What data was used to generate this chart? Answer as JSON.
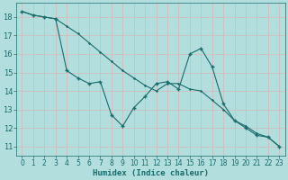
{
  "xlabel": "Humidex (Indice chaleur)",
  "bg_color": "#b2dede",
  "grid_color": "#c8e8e8",
  "line_color": "#1a6b6b",
  "xlim": [
    -0.5,
    23.5
  ],
  "ylim": [
    10.5,
    18.75
  ],
  "x_ticks": [
    0,
    1,
    2,
    3,
    4,
    5,
    6,
    7,
    8,
    9,
    10,
    11,
    12,
    13,
    14,
    15,
    16,
    17,
    18,
    19,
    20,
    21,
    22,
    23
  ],
  "y_ticks": [
    11,
    12,
    13,
    14,
    15,
    16,
    17,
    18
  ],
  "series1_x": [
    0,
    1,
    2,
    3,
    4,
    5,
    6,
    7,
    8,
    9,
    10,
    11,
    12,
    13,
    14,
    15,
    16,
    17,
    18,
    19,
    20,
    21,
    22,
    23
  ],
  "series1_y": [
    18.3,
    18.1,
    18.0,
    17.9,
    15.1,
    14.7,
    14.4,
    14.5,
    12.7,
    12.1,
    13.1,
    13.7,
    14.4,
    14.5,
    14.1,
    16.0,
    16.3,
    15.3,
    13.3,
    12.4,
    12.0,
    11.6,
    11.5,
    11.0
  ],
  "series2_x": [
    0,
    1,
    2,
    3,
    4,
    5,
    6,
    7,
    8,
    9,
    10,
    11,
    12,
    13,
    14,
    15,
    16,
    17,
    18,
    19,
    20,
    21,
    22,
    23
  ],
  "series2_y": [
    18.3,
    18.1,
    18.0,
    17.9,
    17.5,
    17.1,
    16.6,
    16.1,
    15.6,
    15.1,
    14.7,
    14.3,
    14.0,
    14.4,
    14.4,
    14.1,
    14.0,
    13.5,
    13.0,
    12.4,
    12.1,
    11.7,
    11.5,
    11.0
  ],
  "tick_fontsize": 5.5,
  "xlabel_fontsize": 6.5
}
